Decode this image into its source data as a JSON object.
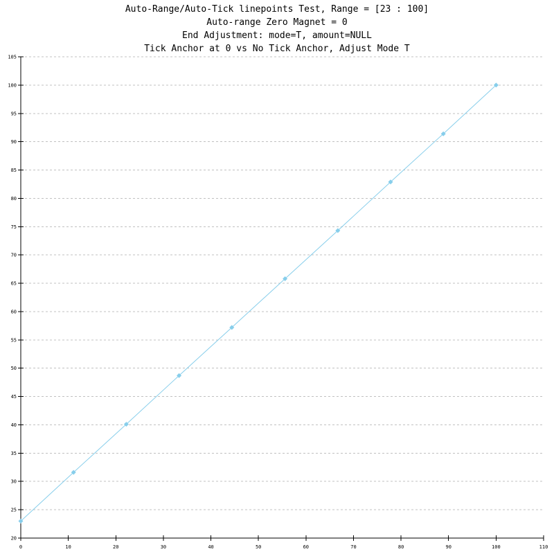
{
  "chart_data": {
    "type": "line",
    "title_lines": [
      "Auto-Range/Auto-Tick linepoints Test, Range = [23 : 100]",
      "Auto-range Zero Magnet = 0",
      "End Adjustment: mode=T, amount=NULL",
      "Tick Anchor at 0 vs No Tick Anchor, Adjust Mode T"
    ],
    "xlabel": "",
    "ylabel": "",
    "xlim": [
      0,
      110
    ],
    "ylim": [
      20,
      105
    ],
    "x_ticks": [
      0,
      10,
      20,
      30,
      40,
      50,
      60,
      70,
      80,
      90,
      100,
      110
    ],
    "y_ticks": [
      20,
      25,
      30,
      35,
      40,
      45,
      50,
      55,
      60,
      65,
      70,
      75,
      80,
      85,
      90,
      95,
      100,
      105
    ],
    "grid": "horizontal-dashed",
    "series": [
      {
        "color": "#87ceeb",
        "marker": "diamond",
        "x": [
          0,
          11.1,
          22.2,
          33.3,
          44.4,
          55.6,
          66.7,
          77.8,
          88.9,
          100
        ],
        "y": [
          23,
          31.6,
          40.1,
          48.7,
          57.2,
          65.8,
          74.3,
          82.9,
          91.4,
          100
        ]
      }
    ],
    "colors": {
      "series": "#87ceeb",
      "grid": "#c0c0c0",
      "axis": "#000000"
    }
  }
}
